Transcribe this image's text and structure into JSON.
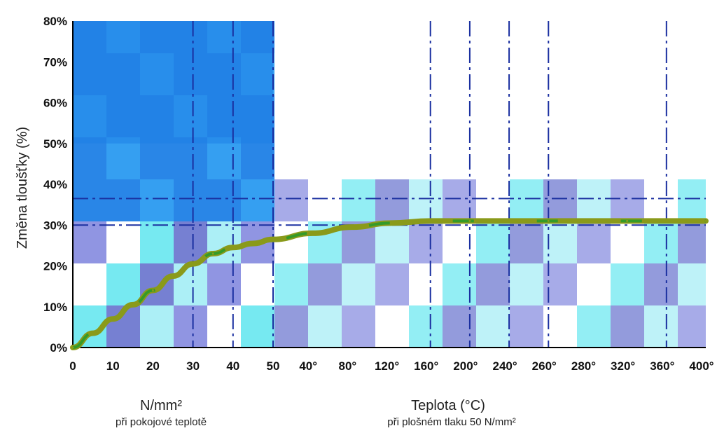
{
  "chart_data": {
    "type": "line",
    "ylabel": "Změna tloušťky (%)",
    "y_ticks": [
      "0%",
      "10%",
      "20%",
      "30%",
      "40%",
      "50%",
      "60%",
      "70%",
      "80%"
    ],
    "ylim": [
      0,
      80
    ],
    "left_panel": {
      "xlabel": "N/mm²",
      "xlabel_sub": "při pokojové teplotě",
      "x_ticks": [
        "0",
        "10",
        "20",
        "30",
        "40",
        "50"
      ],
      "x": [
        0,
        5,
        10,
        15,
        20,
        25,
        30,
        35,
        40,
        45,
        50
      ],
      "y": [
        0,
        3.5,
        7,
        10.5,
        14,
        17.5,
        20.5,
        23,
        24.5,
        25.5,
        26.5
      ]
    },
    "right_panel": {
      "xlabel": "Teplota (°C)",
      "xlabel_sub": "při plošném tlaku 50 N/mm²",
      "x_ticks": [
        "40°",
        "80°",
        "120°",
        "160°",
        "200°",
        "240°",
        "260°",
        "280°",
        "320°",
        "360°",
        "400°"
      ],
      "x": [
        40,
        80,
        120,
        160,
        200,
        240,
        260,
        280,
        320,
        360,
        400
      ],
      "y": [
        28,
        29.5,
        30.5,
        31,
        31,
        31,
        31,
        31,
        31,
        31,
        31
      ]
    },
    "reference_lines_y": [
      30,
      36.5
    ],
    "grid": true,
    "colors": {
      "curve": "#8a9a1a",
      "curve_highlight": "#1f9a2a",
      "grid_dash": "#1a2fa0",
      "fill_blue": "#1e7fe6",
      "fill_cyan": "#6fe8f0",
      "fill_violet": "#6f79d0",
      "axis": "#000000"
    }
  }
}
